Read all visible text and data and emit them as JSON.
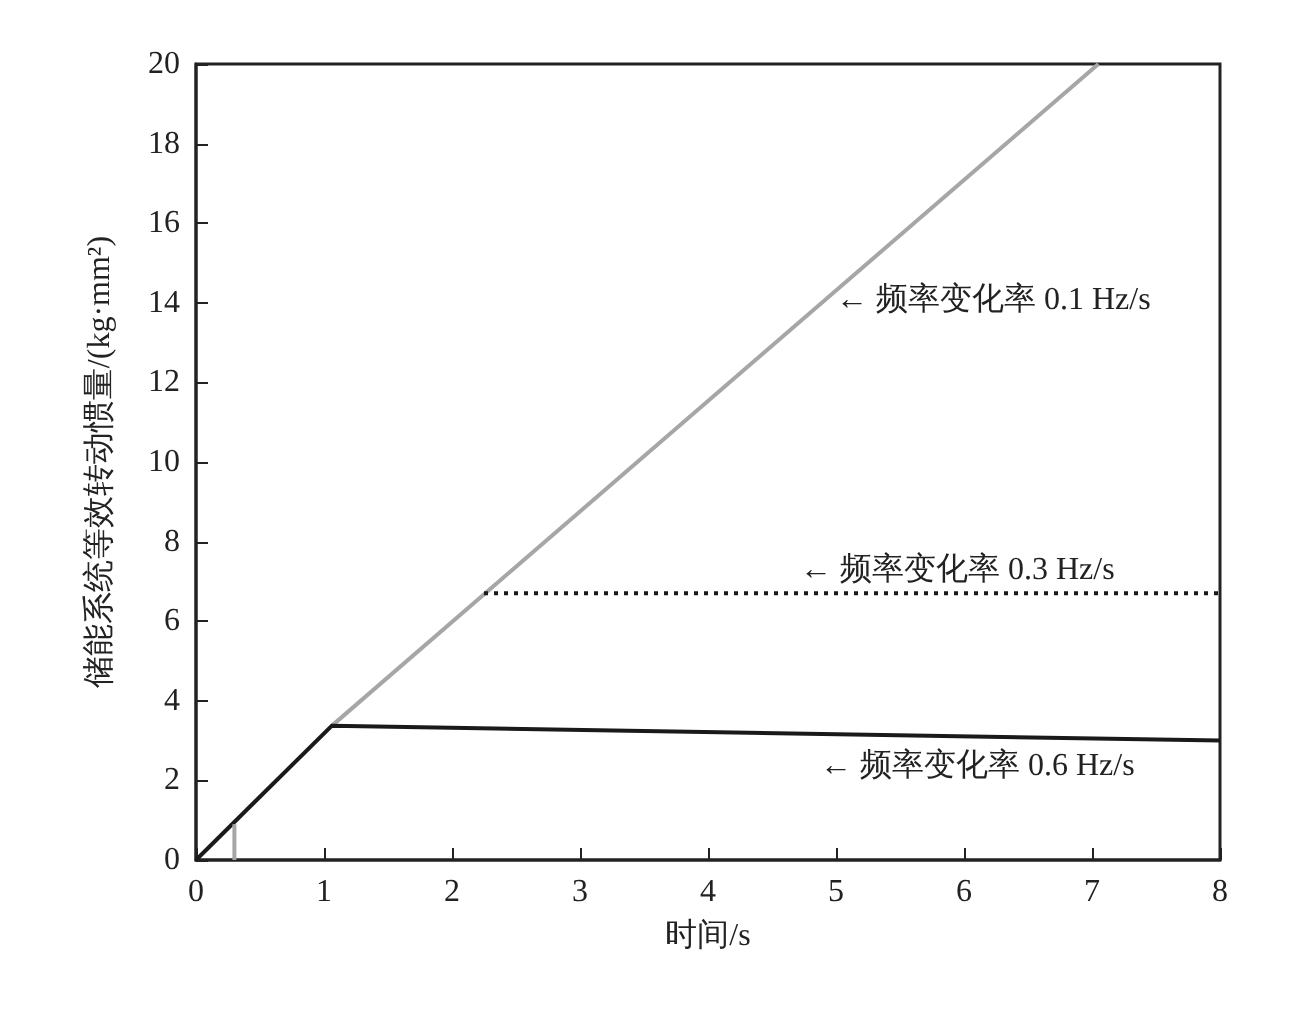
{
  "chart_data": {
    "type": "line",
    "xlabel": "时间/s",
    "ylabel": "储能系统等效转动惯量/(kg·mm²)",
    "xlim": [
      0,
      8
    ],
    "xticks": [
      0,
      1,
      2,
      3,
      4,
      5,
      6,
      7,
      8
    ],
    "ylim": [
      0,
      20
    ],
    "yticks": [
      0,
      2,
      4,
      6,
      8,
      10,
      12,
      14,
      16,
      18,
      20
    ],
    "grid": false,
    "marker": "none",
    "series": [
      {
        "color": "#a6a6a6",
        "x": [
          1.06,
          7.05
        ],
        "values": [
          3.37,
          20
        ]
      },
      {
        "color": "#1a1a1a",
        "x": [
          2.25,
          8
        ],
        "values": [
          6.7,
          6.7
        ],
        "line_style": "dotted"
      },
      {
        "color": "#1a1a1a",
        "x": [
          0,
          1.06,
          8
        ],
        "values": [
          0,
          3.37,
          3.0
        ]
      },
      {
        "color": "#a6a6a6",
        "x": [
          0.3,
          0.3
        ],
        "values": [
          0,
          0.9
        ]
      }
    ],
    "annotations": [
      "← 频率变化率 0.1 Hz/s",
      "← 频率变化率 0.3 Hz/s",
      "← 频率变化率 0.6 Hz/s"
    ]
  }
}
